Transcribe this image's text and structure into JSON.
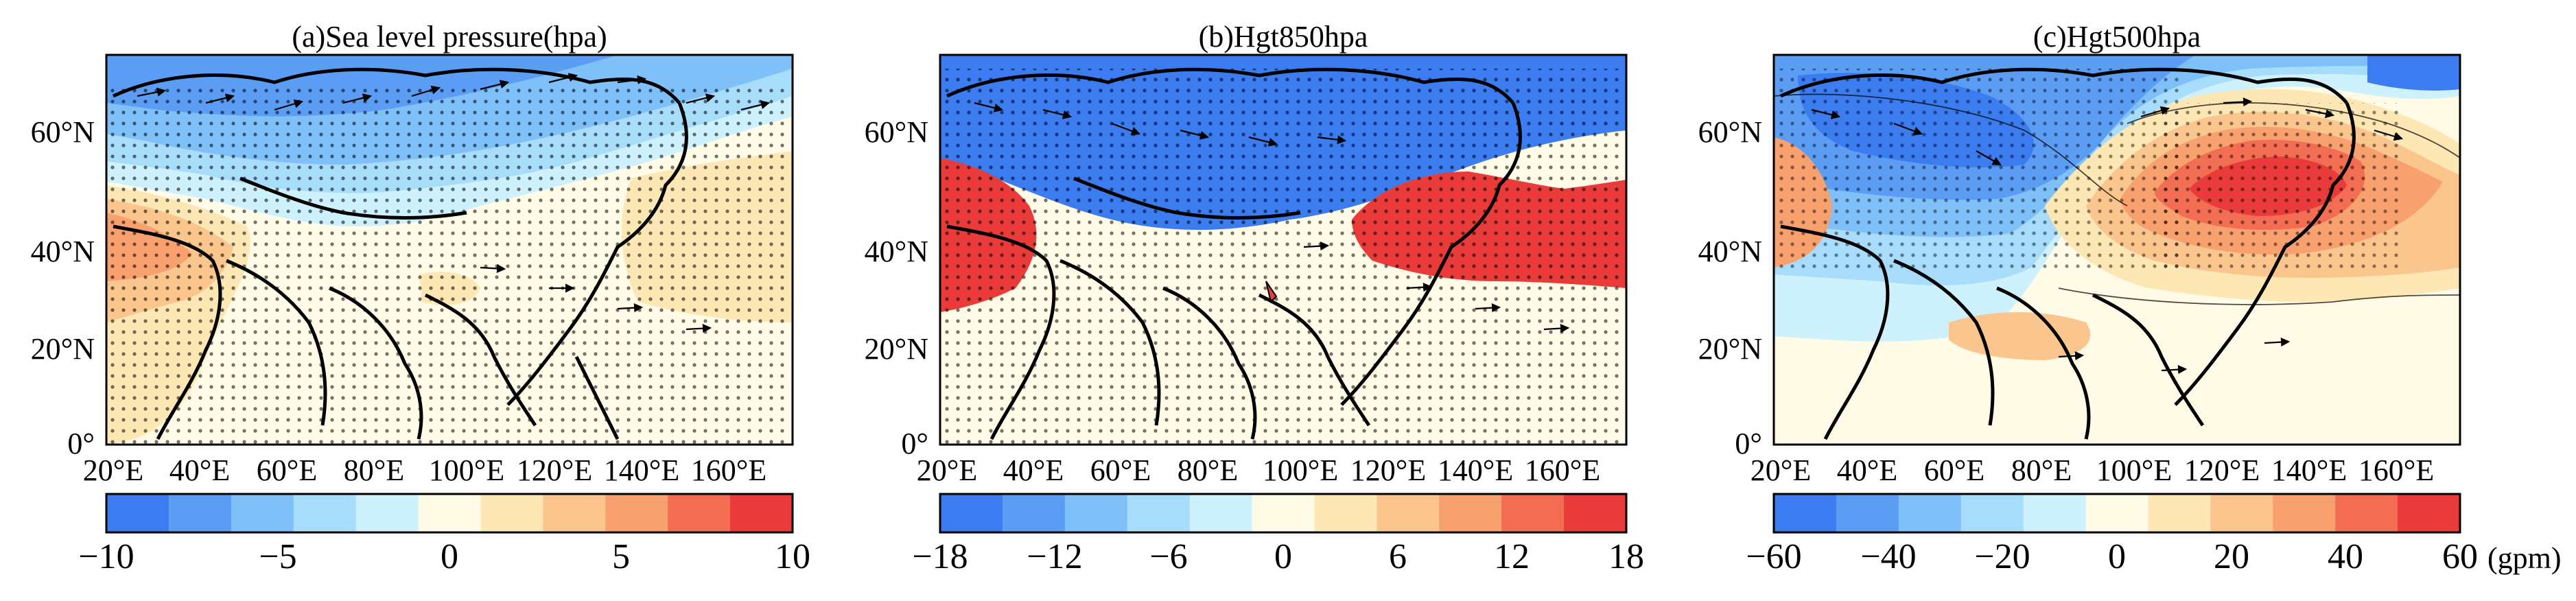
{
  "figure": {
    "units_label": "(gpm)",
    "panels": [
      {
        "id": "a",
        "title": "(a)Sea level pressure(hpa)",
        "x_ticks": [
          "20°E",
          "40°E",
          "60°E",
          "80°E",
          "100°E",
          "120°E",
          "140°E",
          "160°E"
        ],
        "y_ticks": [
          "0°",
          "20°N",
          "40°N",
          "60°N"
        ],
        "colorbar_labels": [
          "−10",
          "−5",
          "0",
          "5",
          "10"
        ],
        "colorbar_levels": [
          -10,
          -8,
          -6,
          -4,
          -2,
          0,
          2,
          4,
          6,
          8,
          10
        ]
      },
      {
        "id": "b",
        "title": "(b)Hgt850hpa",
        "x_ticks": [
          "20°E",
          "40°E",
          "60°E",
          "80°E",
          "100°E",
          "120°E",
          "140°E",
          "160°E"
        ],
        "y_ticks": [
          "0°",
          "20°N",
          "40°N",
          "60°N"
        ],
        "colorbar_labels": [
          "−18",
          "−12",
          "−6",
          "0",
          "6",
          "12",
          "18"
        ],
        "colorbar_levels": [
          -18,
          -15,
          -12,
          -9,
          -6,
          -3,
          0,
          3,
          6,
          9,
          12,
          15,
          18
        ]
      },
      {
        "id": "c",
        "title": "(c)Hgt500hpa",
        "x_ticks": [
          "20°E",
          "40°E",
          "60°E",
          "80°E",
          "100°E",
          "120°E",
          "140°E",
          "160°E"
        ],
        "y_ticks": [
          "0°",
          "20°N",
          "40°N",
          "60°N"
        ],
        "colorbar_labels": [
          "−60",
          "−40",
          "−20",
          "0",
          "20",
          "40",
          "60"
        ],
        "colorbar_levels": [
          -60,
          -50,
          -40,
          -30,
          -20,
          -10,
          0,
          10,
          20,
          30,
          40,
          50,
          60
        ]
      }
    ],
    "palette": [
      "#3b7cf0",
      "#5b9cf4",
      "#7fc0f8",
      "#a7dcfb",
      "#cdf1fd",
      "#fffbe6",
      "#fde7b4",
      "#fbc68e",
      "#f8a06e",
      "#f26d52",
      "#ea3b3b"
    ]
  }
}
